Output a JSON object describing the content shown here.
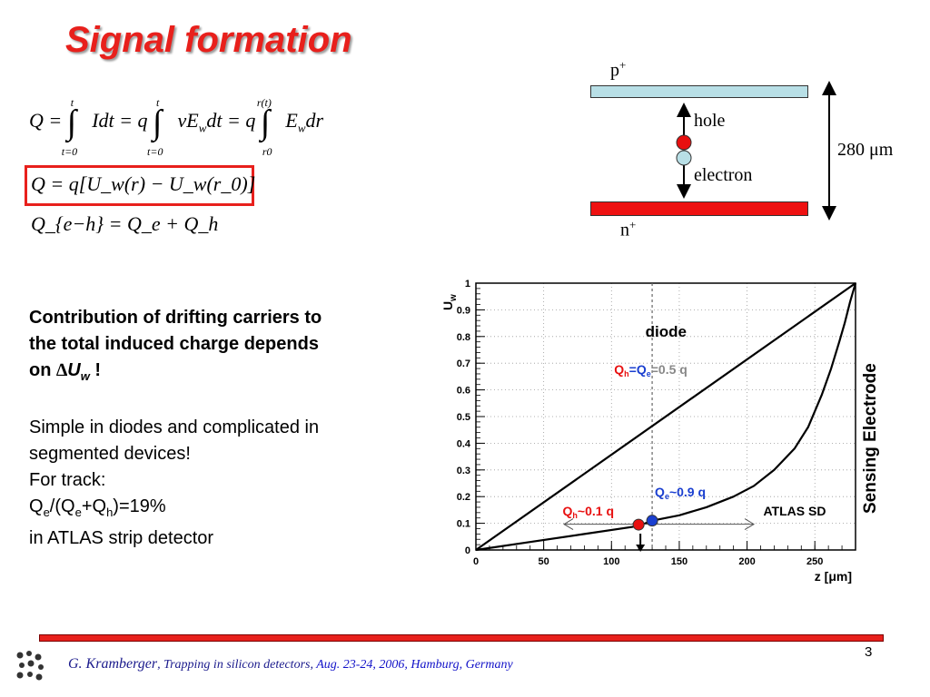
{
  "title": "Signal formation",
  "equations": {
    "eq1": {
      "lhs": "Q =",
      "term1": "Idt = q",
      "term2": "vE",
      "term2_sub": "w",
      "term2_tail": "dt = q",
      "term3": "E",
      "term3_sub": "w",
      "term3_tail": "dr",
      "lim1_upper": "t",
      "lim1_lower": "t=0",
      "lim2_upper": "t",
      "lim2_lower": "t=0",
      "lim3_upper": "r(t)",
      "lim3_lower": "r0"
    },
    "eq2": "Q = q[U_w(r) − U_w(r_0)]",
    "eq3": "Q_{e−h} = Q_e + Q_h"
  },
  "detector_diagram": {
    "p_label": "p",
    "p_sup": "+",
    "n_label": "n",
    "n_sup": "+",
    "hole_label": "hole",
    "electron_label": "electron",
    "thickness_label": "280 μm",
    "colors": {
      "p_plate": "#b8dfe6",
      "n_plate": "#ee1111",
      "hole": "#e81010",
      "electron": "#b8dfe6"
    }
  },
  "text": {
    "contribution_line1": "Contribution of drifting carriers to",
    "contribution_line2": "the total induced charge depends",
    "contribution_line3_prefix": "on ",
    "contribution_delta": "∆",
    "contribution_U": "U",
    "contribution_w": "w",
    "contribution_suffix": " !",
    "simple_line1": "Simple in diodes and complicated in",
    "simple_line2": "segmented devices!",
    "for_track": "For track:",
    "ratio_Q1": "Q",
    "ratio_e1": "e",
    "ratio_mid": "/(Q",
    "ratio_e2": "e",
    "ratio_plus": "+Q",
    "ratio_h": "h",
    "ratio_tail": ")=19%",
    "atlas_line": "in ATLAS strip detector"
  },
  "chart_data": {
    "type": "line",
    "ylabel": "U",
    "ylabel_sub": "w",
    "xlabel": "z [μm]",
    "xlim": [
      0,
      280
    ],
    "ylim": [
      0,
      1
    ],
    "x_ticks": [
      "0",
      "50",
      "100",
      "150",
      "200",
      "250"
    ],
    "y_ticks": [
      "0",
      "0.1",
      "0.2",
      "0.3",
      "0.4",
      "0.5",
      "0.6",
      "0.7",
      "0.8",
      "0.9",
      "1"
    ],
    "series": [
      {
        "name": "diode",
        "x": [
          0,
          280
        ],
        "y": [
          0,
          1
        ]
      },
      {
        "name": "ATLAS SD",
        "x": [
          0,
          40,
          80,
          120,
          130,
          150,
          170,
          190,
          205,
          220,
          235,
          245,
          255,
          262,
          268,
          272,
          276,
          280
        ],
        "y": [
          0,
          0.03,
          0.06,
          0.09,
          0.11,
          0.13,
          0.16,
          0.2,
          0.24,
          0.3,
          0.38,
          0.46,
          0.58,
          0.68,
          0.78,
          0.85,
          0.93,
          1.0
        ]
      }
    ],
    "vertical_line_x": 130,
    "annotations": {
      "diode": "diode",
      "diode_eq_Q": "Q",
      "diode_eq_h": "h",
      "diode_eq_mid": "=Q",
      "diode_eq_e": "e",
      "diode_eq_tail": "=0.5 q",
      "qe_Q": "Q",
      "qe_e": "e",
      "qe_tail": "~0.9 q",
      "qh_Q": "Q",
      "qh_h": "h",
      "qh_tail": "~0.1 q",
      "atlas": "ATLAS SD",
      "sensing": "Sensing Electrode"
    },
    "markers": {
      "hole_x": 120,
      "electron_x": 130,
      "range_x": [
        65,
        205
      ]
    },
    "colors": {
      "hole": "#e81010",
      "electron": "#1a3fd0",
      "qe_text": "#1a3fd0",
      "qh_text": "#e81010",
      "eq_tail": "#888888"
    }
  },
  "footer": {
    "author": "G. Kramberger",
    "talk": ", Trapping in silicon detectors, ",
    "event": "Aug.  23-24, 2006, Hamburg, Germany",
    "slide_number": "3"
  }
}
